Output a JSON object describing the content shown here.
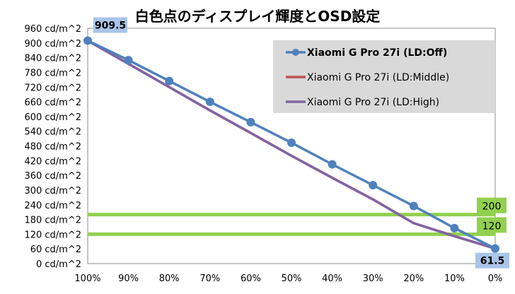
{
  "chart_data": {
    "type": "line",
    "title": "白色点のディスプレイ輝度とOSD設定",
    "categories": [
      "100%",
      "90%",
      "80%",
      "70%",
      "60%",
      "50%",
      "40%",
      "30%",
      "20%",
      "10%",
      "0%"
    ],
    "yticks": [
      "0 cd/m^2",
      "60 cd/m^2",
      "120 cd/m^2",
      "180 cd/m^2",
      "240 cd/m^2",
      "300 cd/m^2",
      "360 cd/m^2",
      "420 cd/m^2",
      "480 cd/m^2",
      "540 cd/m^2",
      "600 cd/m^2",
      "660 cd/m^2",
      "720 cd/m^2",
      "780 cd/m^2",
      "840 cd/m^2",
      "900 cd/m^2",
      "960 cd/m^2"
    ],
    "ylim": [
      0,
      960
    ],
    "grid": false,
    "legend_position": "top-right",
    "series": [
      {
        "name": "Xiaomi G Pro 27i (LD:Off)",
        "color": "#4f81bd",
        "markers": true,
        "values": [
          909.5,
          830,
          745,
          660,
          577,
          493,
          405,
          320,
          235,
          145,
          61.5
        ]
      },
      {
        "name": "Xiaomi G Pro 27i (LD:Middle)",
        "color": "#c0504d",
        "markers": false,
        "values": [
          909.5,
          815,
          720,
          625,
          533,
          440,
          350,
          262,
          165,
          112,
          61.5
        ]
      },
      {
        "name": "Xiaomi G Pro 27i (LD:High)",
        "color": "#8064a2",
        "markers": false,
        "values": [
          909.5,
          815,
          720,
          625,
          533,
          440,
          350,
          262,
          165,
          112,
          61.5
        ]
      }
    ],
    "reference_lines": [
      {
        "value": 200,
        "label": "200",
        "color": "#92d050"
      },
      {
        "value": 120,
        "label": "120",
        "color": "#92d050"
      }
    ],
    "annotations": [
      {
        "label": "909.5",
        "category": "100%",
        "value": 909.5
      },
      {
        "label": "61.5",
        "category": "0%",
        "value": 61.5
      }
    ]
  }
}
